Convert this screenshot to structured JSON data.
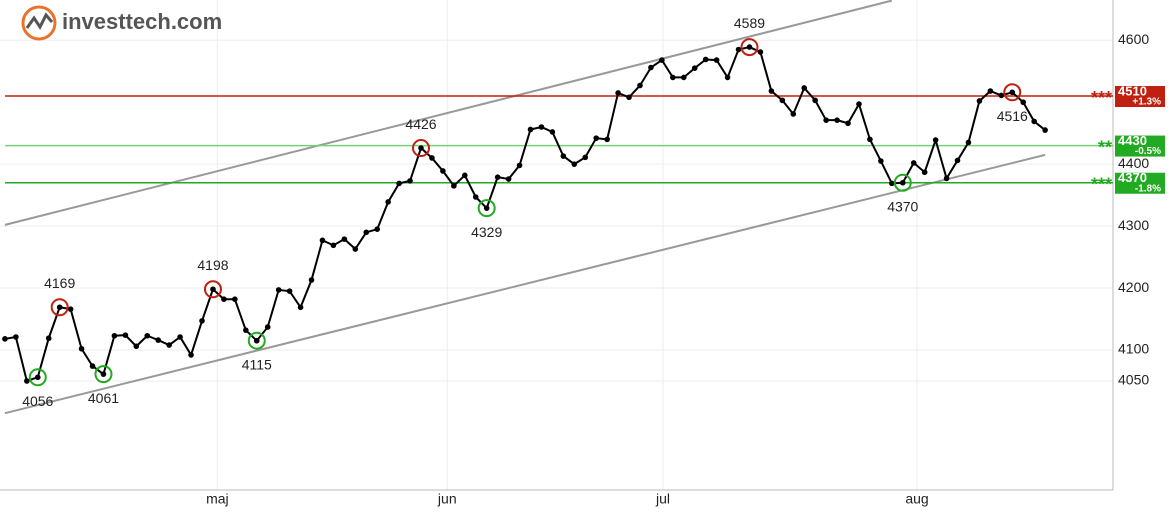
{
  "logo": "investtech.com",
  "chart_data": {
    "type": "line",
    "x": [
      0,
      1,
      2,
      3,
      4,
      5,
      6,
      7,
      8,
      9,
      10,
      11,
      12,
      13,
      14,
      15,
      16,
      17,
      18,
      19,
      20,
      21,
      22,
      23,
      24,
      25,
      26,
      27,
      28,
      29,
      30,
      31,
      32,
      33,
      34,
      35,
      36,
      37,
      38,
      39,
      40,
      41,
      42,
      43,
      44,
      45,
      46,
      47,
      48,
      49,
      50,
      51,
      52,
      53,
      54,
      55,
      56,
      57,
      58,
      59,
      60,
      61,
      62,
      63,
      64,
      65,
      66,
      67,
      68,
      69,
      70,
      71,
      72,
      73,
      74,
      75,
      76,
      77,
      78,
      79,
      80,
      81,
      82,
      83,
      84,
      85,
      86,
      87,
      88,
      89,
      90,
      91,
      92,
      93,
      94,
      95
    ],
    "series": [
      {
        "color": "#000000",
        "values": [
          4118,
          4121,
          4050,
          4056,
          4119,
          4169,
          4166,
          4102,
          4074,
          4061,
          4123,
          4124,
          4106,
          4123,
          4116,
          4108,
          4121,
          4092,
          4147,
          4198,
          4182,
          4182,
          4132,
          4115,
          4137,
          4197,
          4195,
          4169,
          4213,
          4277,
          4269,
          4279,
          4263,
          4290,
          4295,
          4339,
          4369,
          4373,
          4426,
          4410,
          4389,
          4365,
          4382,
          4347,
          4329,
          4379,
          4376,
          4398,
          4456,
          4460,
          4452,
          4413,
          4400,
          4411,
          4442,
          4440,
          4515,
          4508,
          4527,
          4556,
          4568,
          4540,
          4540,
          4555,
          4569,
          4568,
          4540,
          4585,
          4589,
          4581,
          4518,
          4503,
          4481,
          4523,
          4503,
          4471,
          4471,
          4466,
          4497,
          4440,
          4405,
          4369,
          4370,
          4402,
          4387,
          4439,
          4377,
          4406,
          4435,
          4502,
          4518,
          4511,
          4516,
          4500,
          4469,
          4455
        ]
      }
    ],
    "xlim": [
      -0.45,
      101.2
    ],
    "xticks": [
      {
        "value": 19.4,
        "label": "maj"
      },
      {
        "value": 40.4,
        "label": "jun"
      },
      {
        "value": 60.1,
        "label": "jul"
      },
      {
        "value": 83.3,
        "label": "aug"
      }
    ],
    "ylim": [
      3874,
      4665
    ],
    "yticks": [
      4050,
      4100,
      4200,
      4300,
      4400,
      4600
    ],
    "grid": true,
    "annotations": [
      {
        "x": 3,
        "y": 4056,
        "color": "#22aa22"
      },
      {
        "x": 5,
        "y": 4169,
        "color": "#c0200f"
      },
      {
        "x": 9,
        "y": 4061,
        "color": "#22aa22"
      },
      {
        "x": 19,
        "y": 4198,
        "color": "#c0200f"
      },
      {
        "x": 23,
        "y": 4115,
        "color": "#22aa22"
      },
      {
        "x": 38,
        "y": 4426,
        "color": "#c0200f"
      },
      {
        "x": 44,
        "y": 4329,
        "color": "#22aa22"
      },
      {
        "x": 68,
        "y": 4589,
        "color": "#c0200f"
      },
      {
        "x": 82,
        "y": 4370,
        "color": "#22aa22"
      },
      {
        "x": 92,
        "y": 4516,
        "color": "#c0200f"
      }
    ],
    "trend_lines": [
      {
        "x": [
          0,
          81
        ],
        "y": [
          4302,
          4664
        ],
        "color": "#999999"
      },
      {
        "x": [
          0,
          95
        ],
        "y": [
          3998,
          4415
        ],
        "color": "#999999"
      }
    ],
    "levels": [
      {
        "value": 4510,
        "change": "+1.3%",
        "stars": "***",
        "color": "#c0200f"
      },
      {
        "value": 4430,
        "change": "-0.5%",
        "stars": "**",
        "color": "#22aa22",
        "line_color": "#77d077"
      },
      {
        "value": 4370,
        "change": "-1.8%",
        "stars": "***",
        "color": "#22aa22"
      }
    ]
  }
}
